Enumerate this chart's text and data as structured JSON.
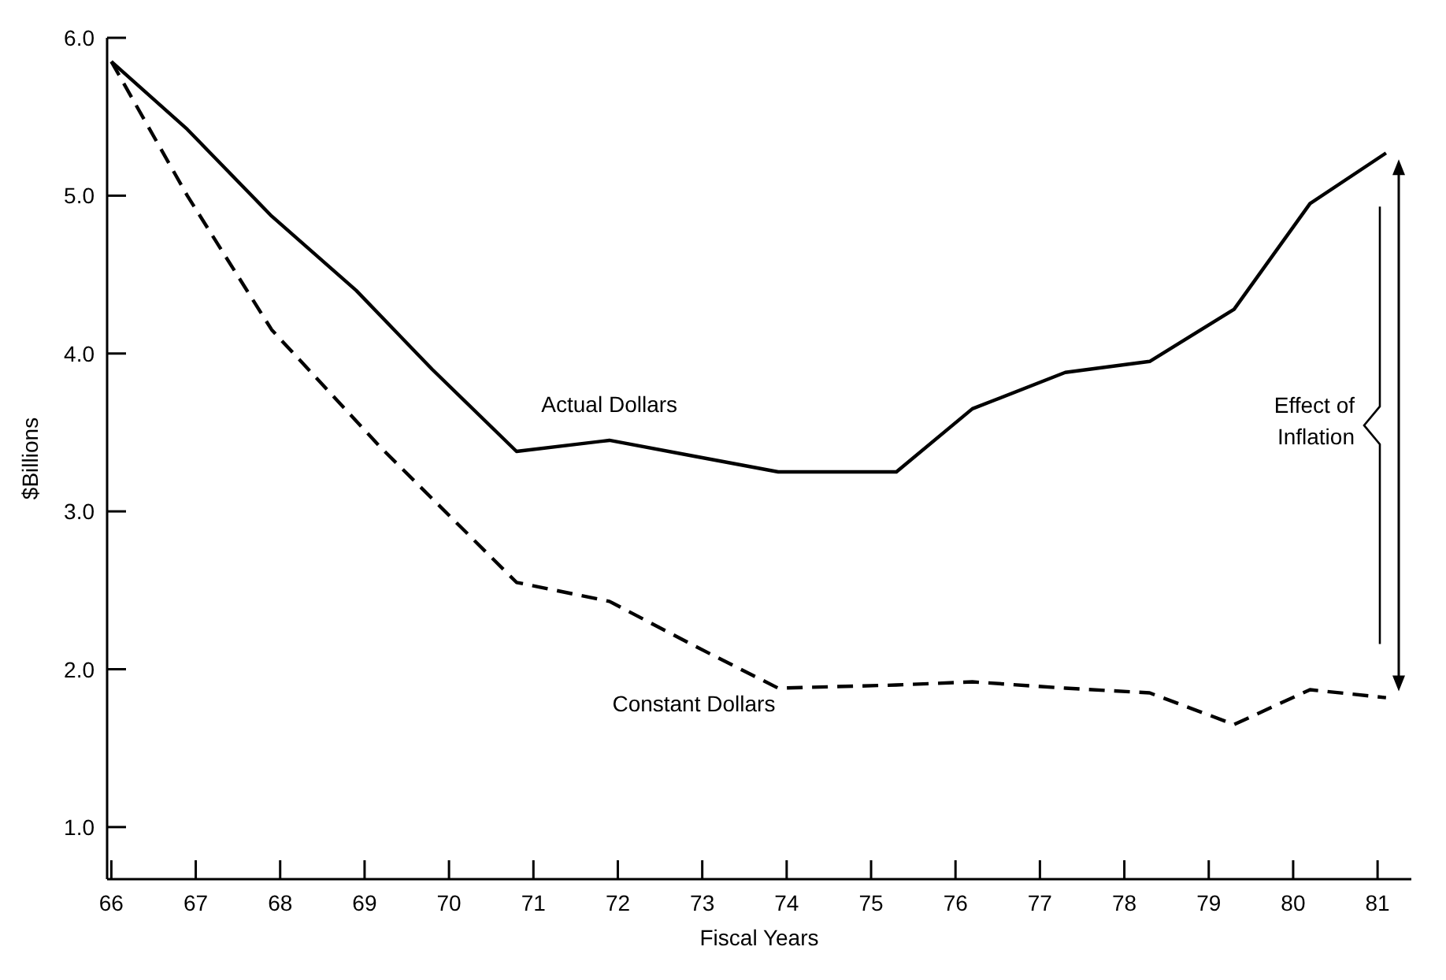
{
  "chart_data": {
    "type": "line",
    "xlabel": "Fiscal Years",
    "ylabel": "$Billions",
    "xlim": [
      65.95,
      81.4
    ],
    "ylim": [
      0.67,
      6.0
    ],
    "xticks": [
      66,
      67,
      68,
      69,
      70,
      71,
      72,
      73,
      74,
      75,
      76,
      77,
      78,
      79,
      80,
      81
    ],
    "yticks": [
      {
        "value": 1,
        "label": "1.0"
      },
      {
        "value": 2,
        "label": "2.0"
      },
      {
        "value": 3,
        "label": "3.0"
      },
      {
        "value": 4,
        "label": "4.0"
      },
      {
        "value": 5,
        "label": "5.0"
      },
      {
        "value": 6,
        "label": "6.0"
      }
    ],
    "grid": false,
    "series": [
      {
        "name": "Actual Dollars",
        "color": "#000000",
        "line_style": "solid",
        "x": [
          66,
          66.9,
          67.9,
          68.9,
          69.8,
          70.8,
          71.9,
          72.9,
          73.9,
          75.3,
          76.2,
          77.3,
          78.3,
          79.3,
          80.2,
          81.1
        ],
        "values": [
          5.85,
          5.42,
          4.87,
          4.4,
          3.9,
          3.38,
          3.45,
          3.35,
          3.25,
          3.25,
          3.65,
          3.88,
          3.95,
          4.28,
          4.95,
          5.27
        ]
      },
      {
        "name": "Constant Dollars",
        "color": "#000000",
        "line_style": "dashed",
        "x": [
          66,
          66.9,
          67.9,
          69.2,
          70.8,
          71.9,
          72.9,
          73.9,
          75.3,
          76.2,
          77.3,
          78.3,
          79.3,
          80.2,
          81.1
        ],
        "values": [
          5.85,
          5.0,
          4.15,
          3.4,
          2.55,
          2.43,
          2.15,
          1.88,
          1.9,
          1.92,
          1.88,
          1.85,
          1.65,
          1.87,
          1.82
        ]
      }
    ],
    "annotations": [
      "Effect of\nInflation"
    ]
  }
}
